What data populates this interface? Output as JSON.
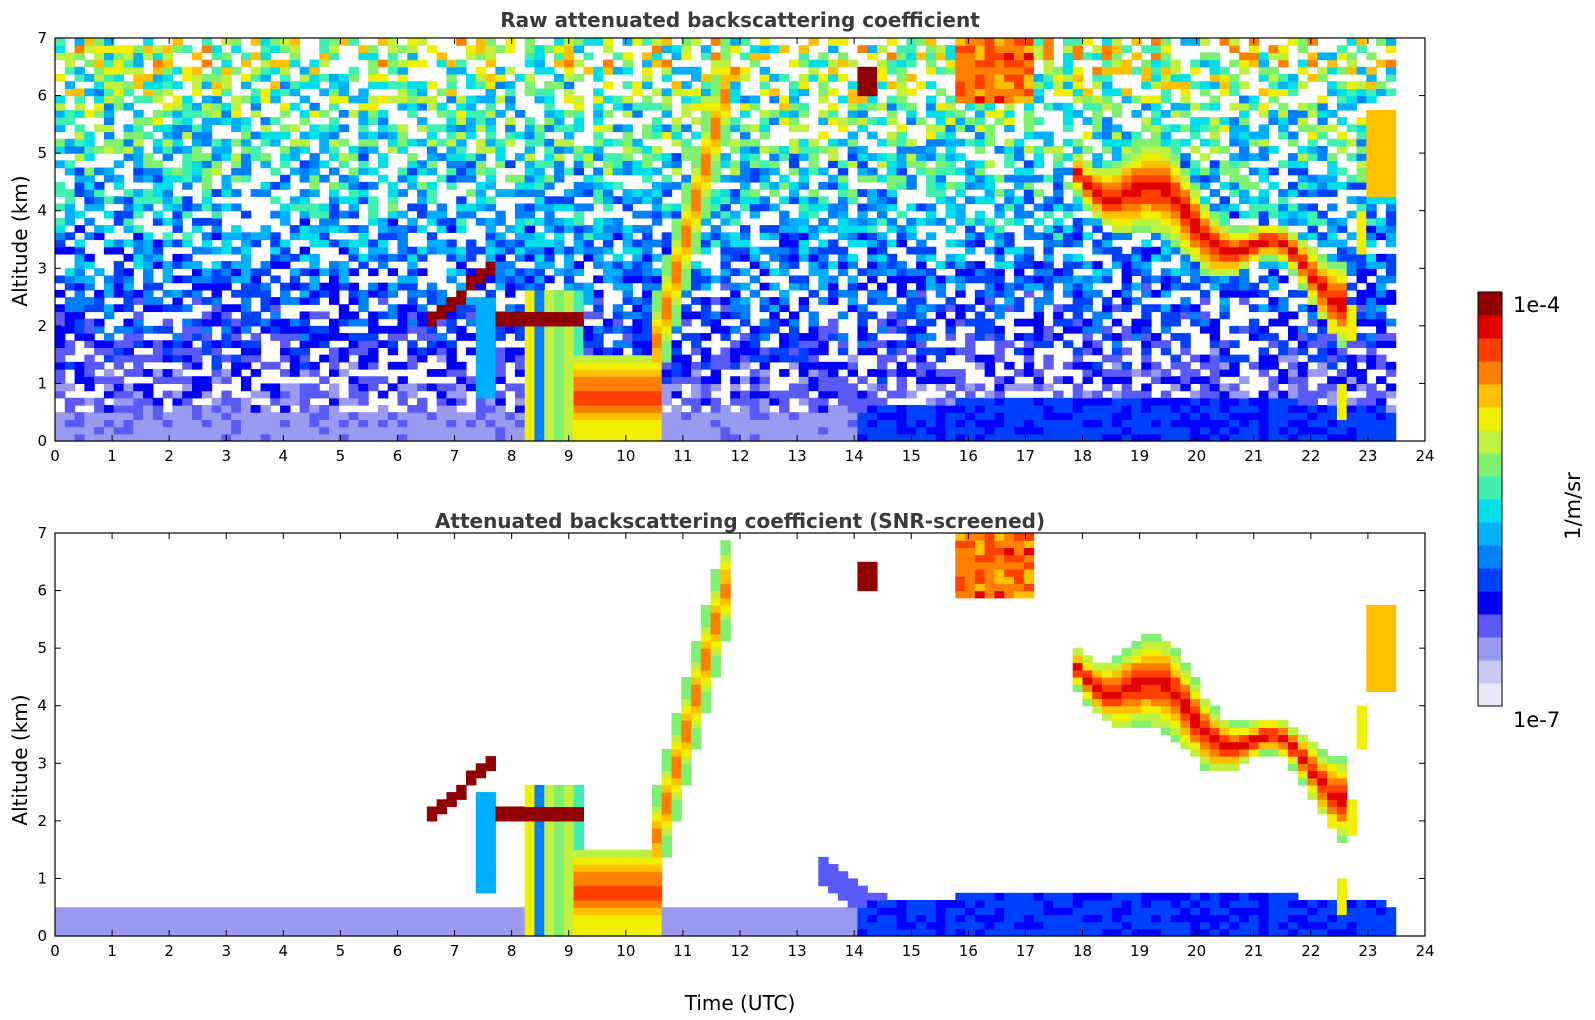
{
  "chart_data": [
    {
      "type": "heatmap",
      "title": "Raw attenuated backscattering coefficient",
      "xlabel": "",
      "ylabel": "Altitude (km)",
      "xlim": [
        0,
        24
      ],
      "ylim": [
        0,
        7
      ],
      "xticks": [
        "0",
        "1",
        "2",
        "3",
        "4",
        "5",
        "6",
        "7",
        "8",
        "9",
        "10",
        "11",
        "12",
        "13",
        "14",
        "15",
        "16",
        "17",
        "18",
        "19",
        "20",
        "21",
        "22",
        "23",
        "24"
      ],
      "yticks": [
        "0",
        "1",
        "2",
        "3",
        "4",
        "5",
        "6",
        "7"
      ],
      "data_end_hour": 23.55,
      "screened": false,
      "features": [
        {
          "name": "boundary layer",
          "t0": 0,
          "t1": 23.55,
          "alt": 0.35,
          "level": 0.14
        },
        {
          "name": "morning cloud",
          "t0": 7.2,
          "t1": 10.6,
          "alt_range": [
            0,
            2.8
          ],
          "level": 0.8
        },
        {
          "name": "rising cloud",
          "t0": 10.6,
          "t1": 11.8,
          "alt_range": [
            1.2,
            6.4
          ],
          "level": 0.7
        },
        {
          "name": "evening cloud",
          "t0": 17.8,
          "t1": 22.6,
          "alt_range": [
            0.6,
            5
          ],
          "level": 0.75
        },
        {
          "name": "high cloud",
          "t0": 15.8,
          "t1": 17.1,
          "alt_range": [
            5.8,
            7
          ],
          "level": 0.75
        }
      ]
    },
    {
      "type": "heatmap",
      "title": "Attenuated backscattering coefficient (SNR-screened)",
      "xlabel": "Time (UTC)",
      "ylabel": "Altitude (km)",
      "xlim": [
        0,
        24
      ],
      "ylim": [
        0,
        7
      ],
      "xticks": [
        "0",
        "1",
        "2",
        "3",
        "4",
        "5",
        "6",
        "7",
        "8",
        "9",
        "10",
        "11",
        "12",
        "13",
        "14",
        "15",
        "16",
        "17",
        "18",
        "19",
        "20",
        "21",
        "22",
        "23",
        "24"
      ],
      "yticks": [
        "0",
        "1",
        "2",
        "3",
        "4",
        "5",
        "6",
        "7"
      ],
      "data_end_hour": 23.55,
      "screened": true
    }
  ],
  "colorbar": {
    "label": "1/m/sr",
    "min_label": "1e-7",
    "max_label": "1e-4",
    "colors": [
      "#e8e8f8",
      "#c8c8f0",
      "#9a9af0",
      "#5a5af8",
      "#0000ff",
      "#0040ff",
      "#0080ff",
      "#00b0ff",
      "#00e0e8",
      "#40f0b0",
      "#80f070",
      "#c0f040",
      "#f0f000",
      "#ffc000",
      "#ff8000",
      "#ff4000",
      "#e00000",
      "#900000"
    ]
  }
}
